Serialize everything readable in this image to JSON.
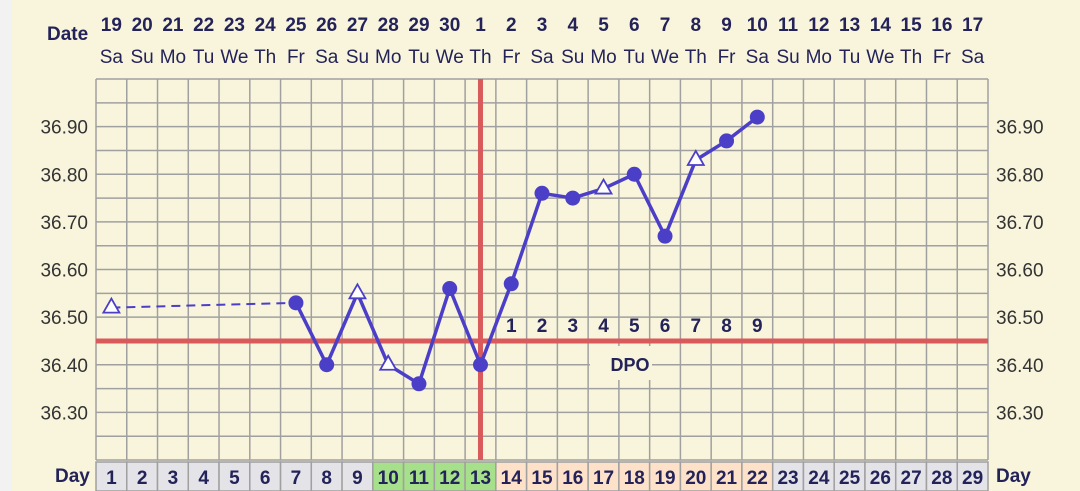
{
  "chart_data": {
    "type": "line",
    "date_label": "Date",
    "day_label": "Day",
    "dates": [
      "19",
      "20",
      "21",
      "22",
      "23",
      "24",
      "25",
      "26",
      "27",
      "28",
      "29",
      "30",
      "1",
      "2",
      "3",
      "4",
      "5",
      "6",
      "7",
      "8",
      "9",
      "10",
      "11",
      "12",
      "13",
      "14",
      "15",
      "16",
      "17"
    ],
    "weekdays": [
      "Sa",
      "Su",
      "Mo",
      "Tu",
      "We",
      "Th",
      "Fr",
      "Sa",
      "Su",
      "Mo",
      "Tu",
      "We",
      "Th",
      "Fr",
      "Sa",
      "Su",
      "Mo",
      "Tu",
      "We",
      "Th",
      "Fr",
      "Sa",
      "Su",
      "Mo",
      "Tu",
      "We",
      "Th",
      "Fr",
      "Sa"
    ],
    "days": [
      1,
      2,
      3,
      4,
      5,
      6,
      7,
      8,
      9,
      10,
      11,
      12,
      13,
      14,
      15,
      16,
      17,
      18,
      19,
      20,
      21,
      22,
      23,
      24,
      25,
      26,
      27,
      28,
      29
    ],
    "day_phases": {
      "fertile": [
        10,
        11,
        12,
        13
      ],
      "luteal": [
        14,
        15,
        16,
        17,
        18,
        19,
        20,
        21,
        22
      ]
    },
    "yticks": [
      "36.30",
      "36.40",
      "36.50",
      "36.60",
      "36.70",
      "36.80",
      "36.90"
    ],
    "ylim": [
      36.2,
      37.0
    ],
    "grid": true,
    "points": [
      {
        "day": 1,
        "temp": 36.52,
        "marker": "open-triangle"
      },
      {
        "day": 7,
        "temp": 36.53,
        "marker": "dot"
      },
      {
        "day": 8,
        "temp": 36.4,
        "marker": "dot"
      },
      {
        "day": 9,
        "temp": 36.55,
        "marker": "open-triangle"
      },
      {
        "day": 10,
        "temp": 36.4,
        "marker": "open-triangle"
      },
      {
        "day": 11,
        "temp": 36.36,
        "marker": "dot"
      },
      {
        "day": 12,
        "temp": 36.56,
        "marker": "dot"
      },
      {
        "day": 13,
        "temp": 36.4,
        "marker": "dot"
      },
      {
        "day": 14,
        "temp": 36.57,
        "marker": "dot"
      },
      {
        "day": 15,
        "temp": 36.76,
        "marker": "dot"
      },
      {
        "day": 16,
        "temp": 36.75,
        "marker": "dot"
      },
      {
        "day": 17,
        "temp": 36.77,
        "marker": "open-triangle"
      },
      {
        "day": 18,
        "temp": 36.8,
        "marker": "dot"
      },
      {
        "day": 19,
        "temp": 36.67,
        "marker": "dot"
      },
      {
        "day": 20,
        "temp": 36.83,
        "marker": "open-triangle"
      },
      {
        "day": 21,
        "temp": 36.87,
        "marker": "dot"
      },
      {
        "day": 22,
        "temp": 36.92,
        "marker": "dot"
      }
    ],
    "dashed_segment": [
      1,
      7
    ],
    "coverline": 36.45,
    "ovulation_day": 13,
    "dpo_label": "DPO",
    "dpo_numbers": [
      "1",
      "2",
      "3",
      "4",
      "5",
      "6",
      "7",
      "8",
      "9"
    ],
    "colors": {
      "line": "#4b3fc8",
      "coverline": "#d95a5a",
      "grid": "#a0a0a0",
      "background": "#f9f5dc",
      "fertile": "#a6e08a",
      "luteal": "#fde2c9",
      "normal": "#e3e3e8"
    }
  }
}
